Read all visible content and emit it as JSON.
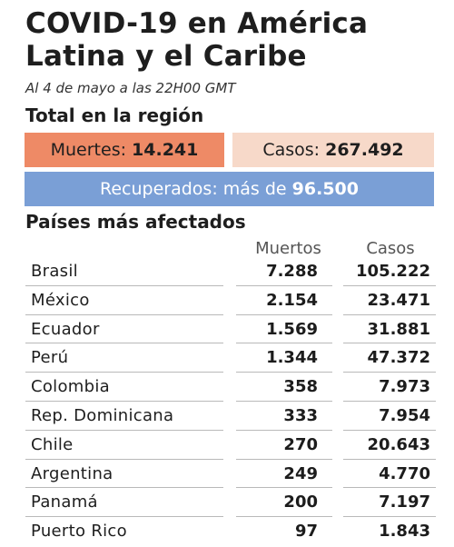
{
  "title": "COVID-19 en América Latina y el Caribe",
  "subtitle": "Al 4 de mayo a las 22H00 GMT",
  "total_section": {
    "heading": "Total en la región",
    "deaths_label": "Muertes:",
    "deaths_value": "14.241",
    "cases_label": "Casos:",
    "cases_value": "267.492",
    "recovered_label": "Recuperados: más de",
    "recovered_value": "96.500"
  },
  "countries_section": {
    "heading": "Países más afectados",
    "col_deaths": "Muertos",
    "col_cases": "Casos"
  },
  "colors": {
    "deaths_box": "#ee8a66",
    "cases_box": "#f7d9c9",
    "recovered_box": "#7a9fd6"
  },
  "chart_data": {
    "type": "table",
    "title": "COVID-19 en América Latina y el Caribe",
    "subtitle": "Al 4 de mayo a las 22H00 GMT",
    "columns": [
      "",
      "Muertos",
      "Casos"
    ],
    "rows": [
      {
        "country": "Brasil",
        "deaths": "7.288",
        "cases": "105.222"
      },
      {
        "country": "México",
        "deaths": "2.154",
        "cases": "23.471"
      },
      {
        "country": "Ecuador",
        "deaths": "1.569",
        "cases": "31.881"
      },
      {
        "country": "Perú",
        "deaths": "1.344",
        "cases": "47.372"
      },
      {
        "country": "Colombia",
        "deaths": "358",
        "cases": "7.973"
      },
      {
        "country": "Rep. Dominicana",
        "deaths": "333",
        "cases": "7.954"
      },
      {
        "country": "Chile",
        "deaths": "270",
        "cases": "20.643"
      },
      {
        "country": "Argentina",
        "deaths": "249",
        "cases": "4.770"
      },
      {
        "country": "Panamá",
        "deaths": "200",
        "cases": "7.197"
      },
      {
        "country": "Puerto Rico",
        "deaths": "97",
        "cases": "1.843"
      }
    ],
    "totals": {
      "deaths": "14.241",
      "cases": "267.492",
      "recovered_more_than": "96.500"
    }
  }
}
